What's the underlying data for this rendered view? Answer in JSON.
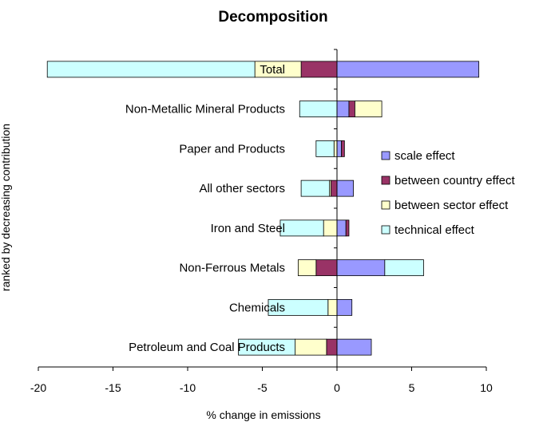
{
  "chart_data": {
    "type": "bar",
    "orientation": "horizontal",
    "stacked": true,
    "title": "Decomposition",
    "xlabel": "% change in emissions",
    "ylabel": "ranked by decreasing contribution",
    "xlim": [
      -20,
      10
    ],
    "xticks": [
      -20,
      -15,
      -10,
      -5,
      0,
      5,
      10
    ],
    "grid": false,
    "legend_position": "right",
    "categories": [
      "Total",
      "Non-Metallic Mineral Products",
      "Paper and Products",
      "All other sectors",
      "Iron and Steel",
      "Non-Ferrous Metals",
      "Chemicals",
      "Petroleum and Coal Products"
    ],
    "series": [
      {
        "name": "scale effect",
        "color": "#9999ff",
        "values": [
          9.5,
          0.8,
          0.3,
          1.1,
          0.6,
          3.2,
          1.0,
          2.3
        ]
      },
      {
        "name": "between country effect",
        "color": "#993366",
        "values": [
          -2.4,
          0.4,
          0.2,
          -0.4,
          0.2,
          -1.4,
          0.0,
          -0.7
        ]
      },
      {
        "name": "between sector effect",
        "color": "#ffffcc",
        "values": [
          -3.1,
          1.8,
          -0.2,
          -0.1,
          -0.9,
          -1.2,
          -0.6,
          -2.1
        ]
      },
      {
        "name": "technical effect",
        "color": "#ccffff",
        "values": [
          -13.9,
          -2.5,
          -1.2,
          -1.9,
          -2.9,
          2.6,
          -4.0,
          -3.8
        ]
      }
    ]
  }
}
